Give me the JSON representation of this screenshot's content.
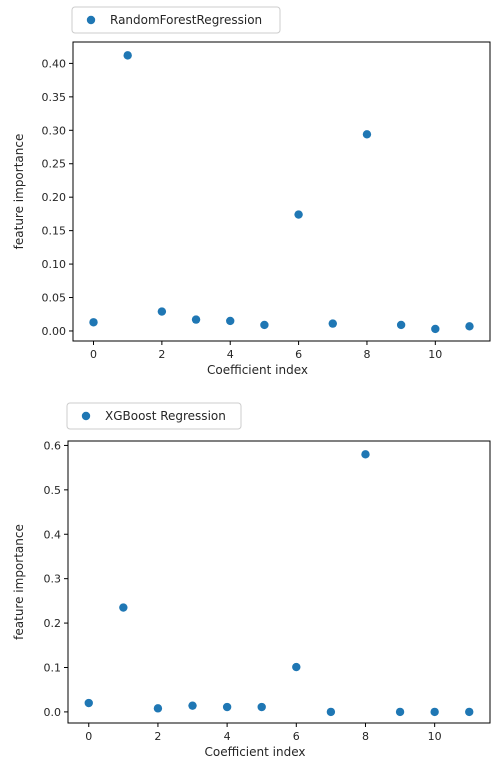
{
  "colors": {
    "marker": "#1f77b4",
    "axis": "#000000",
    "text": "#262626"
  },
  "chart_data": [
    {
      "type": "scatter",
      "series": [
        {
          "name": "RandomForestRegression",
          "x": [
            0,
            1,
            2,
            3,
            4,
            5,
            6,
            7,
            8,
            9,
            10,
            11
          ],
          "y": [
            0.013,
            0.412,
            0.029,
            0.017,
            0.015,
            0.009,
            0.174,
            0.011,
            0.294,
            0.009,
            0.003,
            0.007
          ]
        }
      ],
      "xlabel": "Coefficient index",
      "ylabel": "feature importance",
      "xlim": [
        -0.6,
        11.6
      ],
      "ylim": [
        -0.015,
        0.432
      ],
      "xticks": [
        0,
        2,
        4,
        6,
        8,
        10
      ],
      "yticks": [
        0.0,
        0.05,
        0.1,
        0.15,
        0.2,
        0.25,
        0.3,
        0.35,
        0.4
      ],
      "ytick_labels": [
        "0.00",
        "0.05",
        "0.10",
        "0.15",
        "0.20",
        "0.25",
        "0.30",
        "0.35",
        "0.40"
      ],
      "legend": "top-left-outside",
      "grid": false
    },
    {
      "type": "scatter",
      "series": [
        {
          "name": "XGBoost Regression",
          "x": [
            0,
            1,
            2,
            3,
            4,
            5,
            6,
            7,
            8,
            9,
            10,
            11
          ],
          "y": [
            0.02,
            0.235,
            0.008,
            0.014,
            0.011,
            0.011,
            0.101,
            0.0,
            0.58,
            0.0,
            0.0,
            0.0
          ]
        }
      ],
      "xlabel": "Coefficient index",
      "ylabel": "feature importance",
      "xlim": [
        -0.6,
        11.6
      ],
      "ylim": [
        -0.025,
        0.61
      ],
      "xticks": [
        0,
        2,
        4,
        6,
        8,
        10
      ],
      "yticks": [
        0.0,
        0.1,
        0.2,
        0.3,
        0.4,
        0.5,
        0.6
      ],
      "ytick_labels": [
        "0.0",
        "0.1",
        "0.2",
        "0.3",
        "0.4",
        "0.5",
        "0.6"
      ],
      "legend": "top-left-outside",
      "grid": false
    }
  ]
}
